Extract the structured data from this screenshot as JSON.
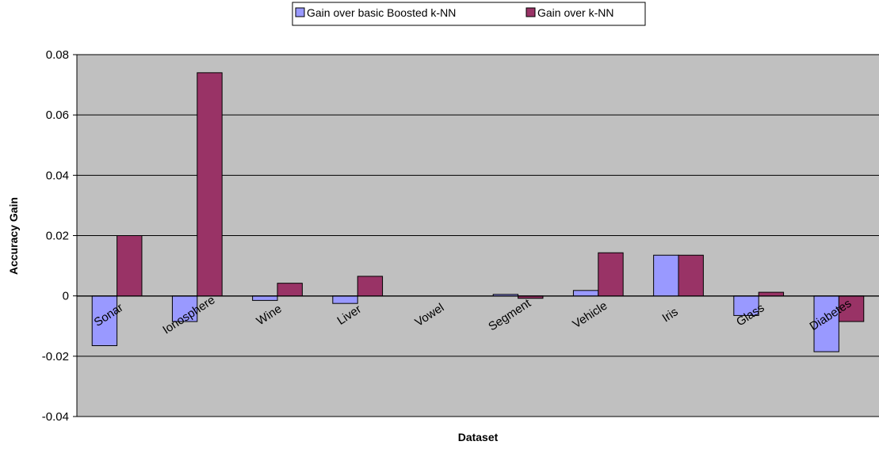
{
  "chart_data": {
    "type": "bar",
    "title": "",
    "xlabel": "Dataset",
    "ylabel": "Accuracy Gain",
    "ylim": [
      -0.04,
      0.08
    ],
    "yticks": [
      "0.08",
      "0.06",
      "0.04",
      "0.02",
      "0",
      "-0.02",
      "-0.04"
    ],
    "ytick_values": [
      0.08,
      0.06,
      0.04,
      0.02,
      0,
      -0.02,
      -0.04
    ],
    "grid": true,
    "legend_position": "top-center",
    "categories": [
      "Sonar",
      "Ionosphere",
      "Wine",
      "Liver",
      "Vowel",
      "Segment",
      "Vehicle",
      "Iris",
      "Glass",
      "Diabetes"
    ],
    "series": [
      {
        "name": "Gain over basic Boosted k-NN",
        "color": "#9999ff",
        "values": [
          -0.0165,
          -0.0085,
          -0.0015,
          -0.0025,
          0,
          0.0005,
          0.0018,
          0.0135,
          -0.0065,
          -0.0185
        ]
      },
      {
        "name": "Gain over k-NN",
        "color": "#993366",
        "values": [
          0.02,
          0.074,
          0.0042,
          0.0065,
          0,
          -0.0008,
          0.0143,
          0.0135,
          0.0012,
          -0.0085
        ]
      }
    ],
    "plot_background": "#c0c0c0"
  }
}
